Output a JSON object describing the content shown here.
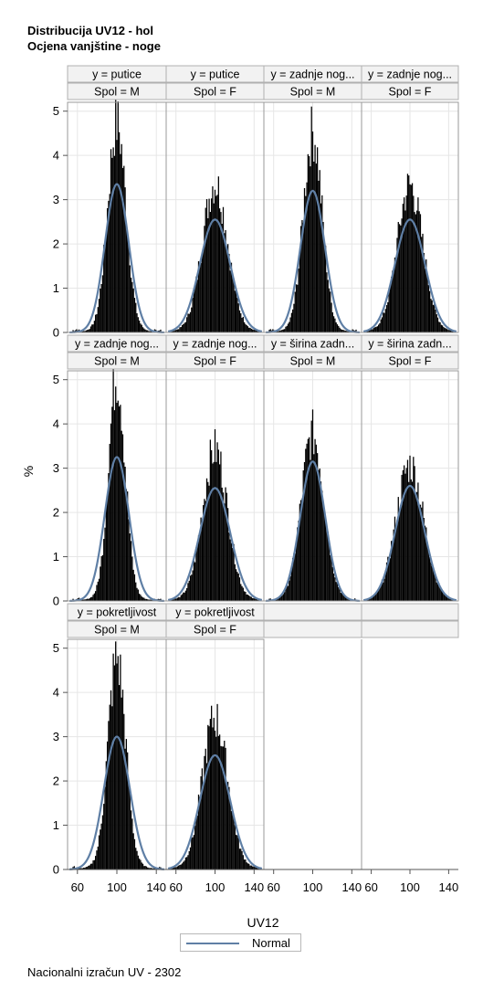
{
  "title": "Distribucija UV12 - hol",
  "subtitle": "Ocjena vanjštine - noge",
  "footnote": "Nacionalni izračun UV - 2302",
  "colors": {
    "bars": "#000000",
    "curve": "#5f7fa5",
    "grid": "#e6e6e6",
    "header_bg": "#f2f2f2",
    "frame": "#9a9a9a"
  },
  "chart_data": {
    "type": "bar",
    "xlabel": "UV12",
    "ylabel": "%",
    "xlim": [
      50,
      150
    ],
    "ylim": [
      0,
      5.2
    ],
    "x_ticks": [
      60,
      100,
      140
    ],
    "y_ticks": [
      0,
      1,
      2,
      3,
      4,
      5
    ],
    "grid": true,
    "legend": {
      "position": "bottom",
      "entries": [
        "Normal"
      ]
    },
    "panels": [
      {
        "y": "putice",
        "spol": "M",
        "y_label": "y = putice",
        "spol_label": "Spol = M",
        "mean": 100,
        "sd": 12,
        "normal_peak": 3.35,
        "histogram_peak": 4.6
      },
      {
        "y": "putice",
        "spol": "F",
        "y_label": "y = putice",
        "spol_label": "Spol = F",
        "mean": 100,
        "sd": 15.5,
        "normal_peak": 2.55,
        "histogram_peak": 3.25
      },
      {
        "y": "zadnje nog...",
        "spol": "M",
        "y_label": "y = zadnje nog...",
        "spol_label": "Spol = M",
        "mean": 100,
        "sd": 12.5,
        "normal_peak": 3.2,
        "histogram_peak": 4.4
      },
      {
        "y": "zadnje nog...",
        "spol": "F",
        "y_label": "y = zadnje nog...",
        "spol_label": "Spol = F",
        "mean": 100,
        "sd": 15.5,
        "normal_peak": 2.55,
        "histogram_peak": 3.2
      },
      {
        "y": "zadnje nog...",
        "spol": "M",
        "y_label": "y = zadnje nog...",
        "spol_label": "Spol = M",
        "mean": 100,
        "sd": 12.2,
        "normal_peak": 3.25,
        "histogram_peak": 5.0
      },
      {
        "y": "zadnje nog...",
        "spol": "F",
        "y_label": "y = zadnje nog...",
        "spol_label": "Spol = F",
        "mean": 100,
        "sd": 15.5,
        "normal_peak": 2.55,
        "histogram_peak": 3.3
      },
      {
        "y": "širina zadn...",
        "spol": "M",
        "y_label": "y = širina zadn...",
        "spol_label": "Spol = M",
        "mean": 100,
        "sd": 12.8,
        "normal_peak": 3.15,
        "histogram_peak": 3.65
      },
      {
        "y": "širina zadn...",
        "spol": "F",
        "y_label": "y = širina zadn...",
        "spol_label": "Spol = F",
        "mean": 100,
        "sd": 15.2,
        "normal_peak": 2.6,
        "histogram_peak": 2.95
      },
      {
        "y": "pokretljivost",
        "spol": "M",
        "y_label": "y = pokretljivost",
        "spol_label": "Spol = M",
        "mean": 100,
        "sd": 13.2,
        "normal_peak": 3.0,
        "histogram_peak": 4.65
      },
      {
        "y": "pokretljivost",
        "spol": "F",
        "y_label": "y = pokretljivost",
        "spol_label": "Spol = F",
        "mean": 100,
        "sd": 15.5,
        "normal_peak": 2.58,
        "histogram_peak": 3.3
      }
    ]
  }
}
